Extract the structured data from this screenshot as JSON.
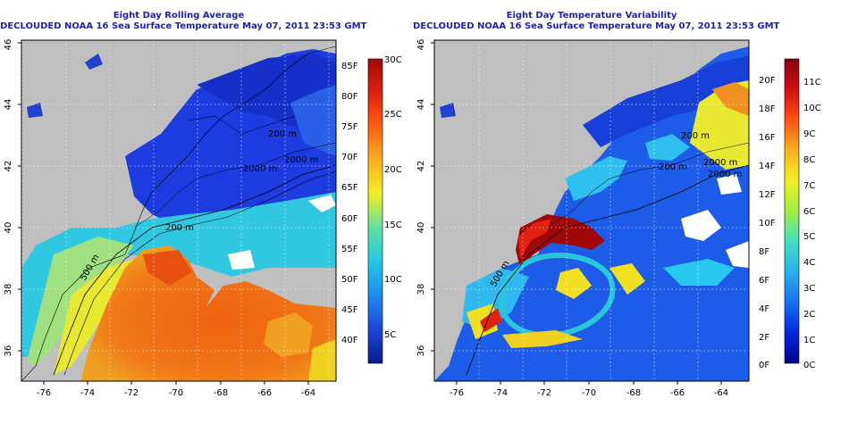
{
  "panels": [
    {
      "title_line1": "Eight Day Rolling Average",
      "title_line2": "DECLOUDED NOAA 16 Sea Surface Temperature May 07, 2011 23:53 GMT",
      "x_ticks": [
        "-76",
        "-74",
        "-72",
        "-70",
        "-68",
        "-66",
        "-64"
      ],
      "y_ticks": [
        "36",
        "38",
        "40",
        "42",
        "44",
        "46"
      ],
      "contour_labels": [
        "2000 m",
        "200 m",
        "500 m",
        "2000 m",
        "200 m"
      ],
      "colorbar": {
        "colors": [
          "#0a1a8a",
          "#1e46d8",
          "#1c8cf0",
          "#20c8e8",
          "#60e0a0",
          "#f0f020",
          "#ffb020",
          "#ff6010",
          "#e02010",
          "#a00808"
        ],
        "fahrenheit": [
          "85F",
          "80F",
          "75F",
          "70F",
          "65F",
          "60F",
          "55F",
          "50F",
          "45F",
          "40F"
        ],
        "celsius": [
          "30C",
          "25C",
          "20C",
          "15C",
          "10C",
          "5C"
        ]
      }
    },
    {
      "title_line1": "Eight Day Temperature Variability",
      "title_line2": "DECLOUDED NOAA 16 Sea Surface Temperature May 07, 2011 23:53 GMT",
      "x_ticks": [
        "-76",
        "-74",
        "-72",
        "-70",
        "-68",
        "-66",
        "-64"
      ],
      "y_ticks": [
        "36",
        "38",
        "40",
        "42",
        "44",
        "46"
      ],
      "contour_labels": [
        "2000 m",
        "200 m",
        "200 m",
        "500 m",
        "2000 m"
      ],
      "colorbar": {
        "colors": [
          "#00008c",
          "#0028e0",
          "#1870f0",
          "#28b0f0",
          "#40e0c0",
          "#a0f040",
          "#f0f020",
          "#ffb020",
          "#ff5010",
          "#d01010",
          "#8a0010"
        ],
        "fahrenheit": [
          "20F",
          "18F",
          "16F",
          "14F",
          "12F",
          "10F",
          "8F",
          "6F",
          "4F",
          "2F",
          "0F"
        ],
        "celsius": [
          "11C",
          "10C",
          "9C",
          "8C",
          "7C",
          "6C",
          "5C",
          "4C",
          "3C",
          "2C",
          "1C",
          "0C"
        ]
      }
    }
  ]
}
